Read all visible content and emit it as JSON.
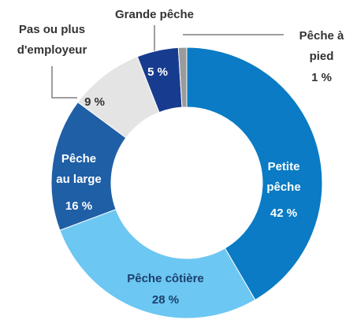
{
  "chart_data": {
    "type": "donut",
    "categories": [
      "Petite\npêche",
      "Pêche côtière",
      "Pêche\nau large",
      "Pas ou plus\nd'employeur",
      "Grande pêche",
      "Pêche à\npied"
    ],
    "values": [
      42,
      28,
      16,
      9,
      5,
      1
    ],
    "value_labels": [
      "42 %",
      "28 %",
      "16 %",
      "9 %",
      "5 %",
      "1 %"
    ],
    "colors": [
      "#0a7bc4",
      "#6cc7f2",
      "#1f5fa6",
      "#e4e4e4",
      "#173c8f",
      "#9b9b9b"
    ]
  }
}
